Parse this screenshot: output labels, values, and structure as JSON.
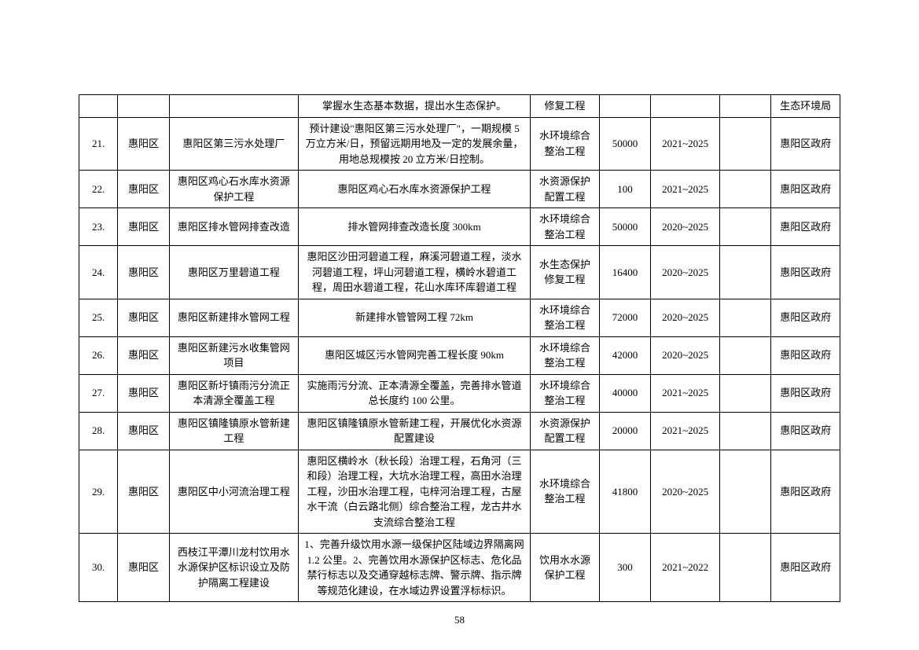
{
  "pageNumber": "58",
  "col8_blank": "",
  "rows": [
    {
      "n": "",
      "region": "",
      "project": "",
      "desc": "掌握水生态基本数据，提出水生态保护。",
      "type": "修复工程",
      "invest": "",
      "period": "",
      "owner": "生态环境局"
    },
    {
      "n": "21.",
      "region": "惠阳区",
      "project": "惠阳区第三污水处理厂",
      "desc": "预计建设\"惠阳区第三污水处理厂\"，一期规模 5 万立方米/日，预留远期用地及一定的发展余量，用地总规模按 20 立方米/日控制。",
      "type": "水环境综合整治工程",
      "invest": "50000",
      "period": "2021~2025",
      "owner": "惠阳区政府"
    },
    {
      "n": "22.",
      "region": "惠阳区",
      "project": "惠阳区鸡心石水库水资源保护工程",
      "desc": "惠阳区鸡心石水库水资源保护工程",
      "type": "水资源保护配置工程",
      "invest": "100",
      "period": "2021~2025",
      "owner": "惠阳区政府"
    },
    {
      "n": "23.",
      "region": "惠阳区",
      "project": "惠阳区排水管网排查改造",
      "desc": "排水管网排查改造长度 300km",
      "type": "水环境综合整治工程",
      "invest": "50000",
      "period": "2020~2025",
      "owner": "惠阳区政府"
    },
    {
      "n": "24.",
      "region": "惠阳区",
      "project": "惠阳区万里碧道工程",
      "desc": "惠阳区沙田河碧道工程，麻溪河碧道工程，淡水河碧道工程，坪山河碧道工程，横岭水碧道工程，周田水碧道工程，花山水库环库碧道工程",
      "type": "水生态保护修复工程",
      "invest": "16400",
      "period": "2020~2025",
      "owner": "惠阳区政府"
    },
    {
      "n": "25.",
      "region": "惠阳区",
      "project": "惠阳区新建排水管网工程",
      "desc": "新建排水管管网工程 72km",
      "type": "水环境综合整治工程",
      "invest": "72000",
      "period": "2020~2025",
      "owner": "惠阳区政府"
    },
    {
      "n": "26.",
      "region": "惠阳区",
      "project": "惠阳区新建污水收集管网项目",
      "desc": "惠阳区城区污水管网完善工程长度 90km",
      "type": "水环境综合整治工程",
      "invest": "42000",
      "period": "2020~2025",
      "owner": "惠阳区政府"
    },
    {
      "n": "27.",
      "region": "惠阳区",
      "project": "惠阳区新圩镇雨污分流正本清源全覆盖工程",
      "desc": "实施雨污分流、正本清源全覆盖，完善排水管道总长度约 100 公里。",
      "type": "水环境综合整治工程",
      "invest": "40000",
      "period": "2021~2025",
      "owner": "惠阳区政府"
    },
    {
      "n": "28.",
      "region": "惠阳区",
      "project": "惠阳区镇隆镇原水管新建工程",
      "desc": "惠阳区镇隆镇原水管新建工程，开展优化水资源配置建设",
      "type": "水资源保护配置工程",
      "invest": "20000",
      "period": "2021~2025",
      "owner": "惠阳区政府"
    },
    {
      "n": "29.",
      "region": "惠阳区",
      "project": "惠阳区中小河流治理工程",
      "desc": "惠阳区横岭水（秋长段）治理工程，石角河（三和段）治理工程，大坑水治理工程，高田水治理工程，沙田水治理工程，屯梓河治理工程，古屋水干流（白云路北侧）综合整治工程，龙古井水支流综合整治工程",
      "type": "水环境综合整治工程",
      "invest": "41800",
      "period": "2020~2025",
      "owner": "惠阳区政府"
    },
    {
      "n": "30.",
      "region": "惠阳区",
      "project": "西枝江平潭川龙村饮用水水源保护区标识设立及防护隔离工程建设",
      "desc": "1、完善升级饮用水源一级保护区陆域边界隔离网 1.2 公里。2、完善饮用水源保护区标志、危化品禁行标志以及交通穿越标志牌、警示牌、指示牌等规范化建设，在水域边界设置浮标标识。",
      "type": "饮用水水源保护工程",
      "invest": "300",
      "period": "2021~2022",
      "owner": "惠阳区政府"
    }
  ]
}
